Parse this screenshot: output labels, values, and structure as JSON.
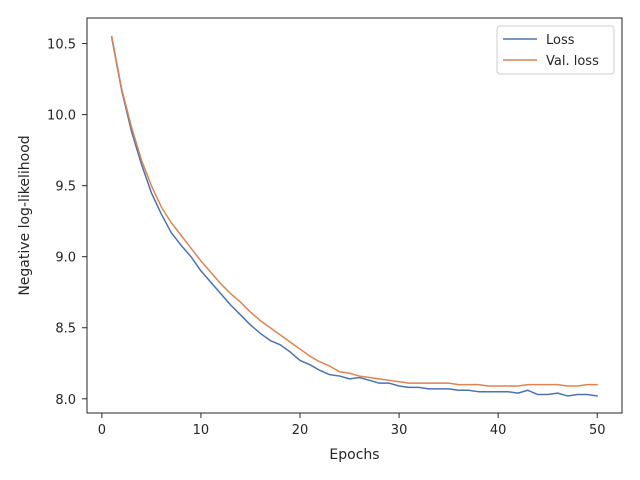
{
  "chart_data": {
    "type": "line",
    "xlabel": "Epochs",
    "ylabel": "Negative log-likelihood",
    "xlim": [
      -1.5,
      52.5
    ],
    "ylim": [
      7.9,
      10.68
    ],
    "xticks": [
      0,
      10,
      20,
      30,
      40,
      50
    ],
    "yticks": [
      8.0,
      8.5,
      9.0,
      9.5,
      10.0,
      10.5
    ],
    "ytick_labels": [
      "8.0",
      "8.5",
      "9.0",
      "9.5",
      "10.0",
      "10.5"
    ],
    "grid": false,
    "legend_position": "top-right",
    "x": [
      1,
      2,
      3,
      4,
      5,
      6,
      7,
      8,
      9,
      10,
      11,
      12,
      13,
      14,
      15,
      16,
      17,
      18,
      19,
      20,
      21,
      22,
      23,
      24,
      25,
      26,
      27,
      28,
      29,
      30,
      31,
      32,
      33,
      34,
      35,
      36,
      37,
      38,
      39,
      40,
      41,
      42,
      43,
      44,
      45,
      46,
      47,
      48,
      49,
      50
    ],
    "series": [
      {
        "name": "Loss",
        "color": "#4c72b0",
        "values": [
          10.54,
          10.17,
          9.88,
          9.65,
          9.45,
          9.3,
          9.17,
          9.08,
          9.0,
          8.9,
          8.82,
          8.74,
          8.66,
          8.59,
          8.52,
          8.46,
          8.41,
          8.38,
          8.33,
          8.27,
          8.24,
          8.2,
          8.17,
          8.16,
          8.14,
          8.15,
          8.13,
          8.11,
          8.11,
          8.09,
          8.08,
          8.08,
          8.07,
          8.07,
          8.07,
          8.06,
          8.06,
          8.05,
          8.05,
          8.05,
          8.05,
          8.04,
          8.06,
          8.03,
          8.03,
          8.04,
          8.02,
          8.03,
          8.03,
          8.02
        ]
      },
      {
        "name": "Val. loss",
        "color": "#dd8452",
        "values": [
          10.55,
          10.18,
          9.91,
          9.68,
          9.5,
          9.35,
          9.24,
          9.15,
          9.06,
          8.97,
          8.89,
          8.81,
          8.74,
          8.68,
          8.61,
          8.55,
          8.5,
          8.45,
          8.4,
          8.35,
          8.3,
          8.26,
          8.23,
          8.19,
          8.18,
          8.16,
          8.15,
          8.14,
          8.13,
          8.12,
          8.11,
          8.11,
          8.11,
          8.11,
          8.11,
          8.1,
          8.1,
          8.1,
          8.09,
          8.09,
          8.09,
          8.09,
          8.1,
          8.1,
          8.1,
          8.1,
          8.09,
          8.09,
          8.1,
          8.1
        ]
      }
    ]
  }
}
